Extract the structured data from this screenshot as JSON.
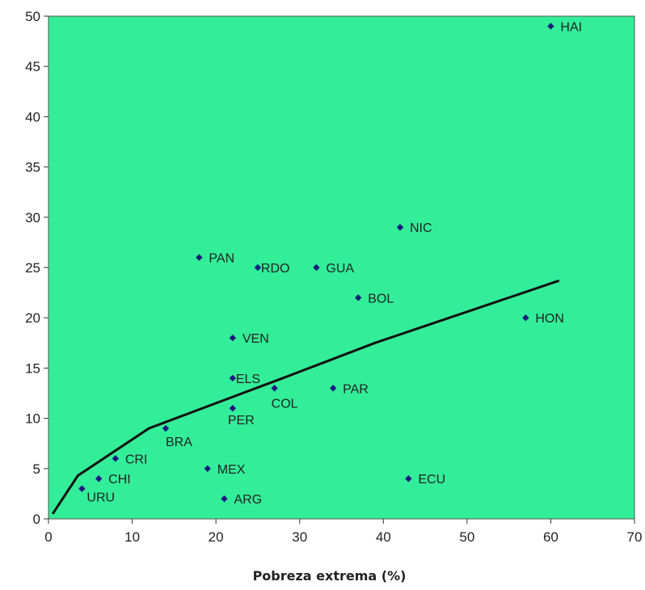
{
  "chart_data": {
    "type": "scatter",
    "title": "",
    "xlabel": "Pobreza extrema (%)",
    "ylabel": "",
    "xlim": [
      0,
      70
    ],
    "ylim": [
      0,
      50
    ],
    "x_ticks": [
      0,
      10,
      20,
      30,
      40,
      50,
      60,
      70
    ],
    "y_ticks": [
      0,
      5,
      10,
      15,
      20,
      25,
      30,
      35,
      40,
      45,
      50
    ],
    "grid": false,
    "legend": "none",
    "plot_background": "#33EE99",
    "marker_color": "#1A1A80",
    "line_color": "#111111",
    "points": [
      {
        "label": "HAI",
        "x": 60,
        "y": 49
      },
      {
        "label": "NIC",
        "x": 42,
        "y": 29
      },
      {
        "label": "PAN",
        "x": 18,
        "y": 26
      },
      {
        "label": "RDO",
        "x": 25,
        "y": 25
      },
      {
        "label": "GUA",
        "x": 32,
        "y": 25
      },
      {
        "label": "BOL",
        "x": 37,
        "y": 22
      },
      {
        "label": "HON",
        "x": 57,
        "y": 20
      },
      {
        "label": "VEN",
        "x": 22,
        "y": 18
      },
      {
        "label": "ELS",
        "x": 22,
        "y": 14
      },
      {
        "label": "COL",
        "x": 27,
        "y": 13
      },
      {
        "label": "PAR",
        "x": 34,
        "y": 13
      },
      {
        "label": "PER",
        "x": 22,
        "y": 11
      },
      {
        "label": "BRA",
        "x": 14,
        "y": 9
      },
      {
        "label": "CRI",
        "x": 8,
        "y": 6
      },
      {
        "label": "MEX",
        "x": 19,
        "y": 5
      },
      {
        "label": "CHI",
        "x": 6,
        "y": 4
      },
      {
        "label": "ECU",
        "x": 43,
        "y": 4
      },
      {
        "label": "URU",
        "x": 4,
        "y": 3
      },
      {
        "label": "ARG",
        "x": 21,
        "y": 2
      }
    ],
    "trend_line": {
      "x": [
        0.5,
        3.5,
        12,
        20,
        28,
        39,
        61
      ],
      "y": [
        0.5,
        4.3,
        9,
        11.5,
        14,
        17.5,
        23.7
      ]
    }
  }
}
